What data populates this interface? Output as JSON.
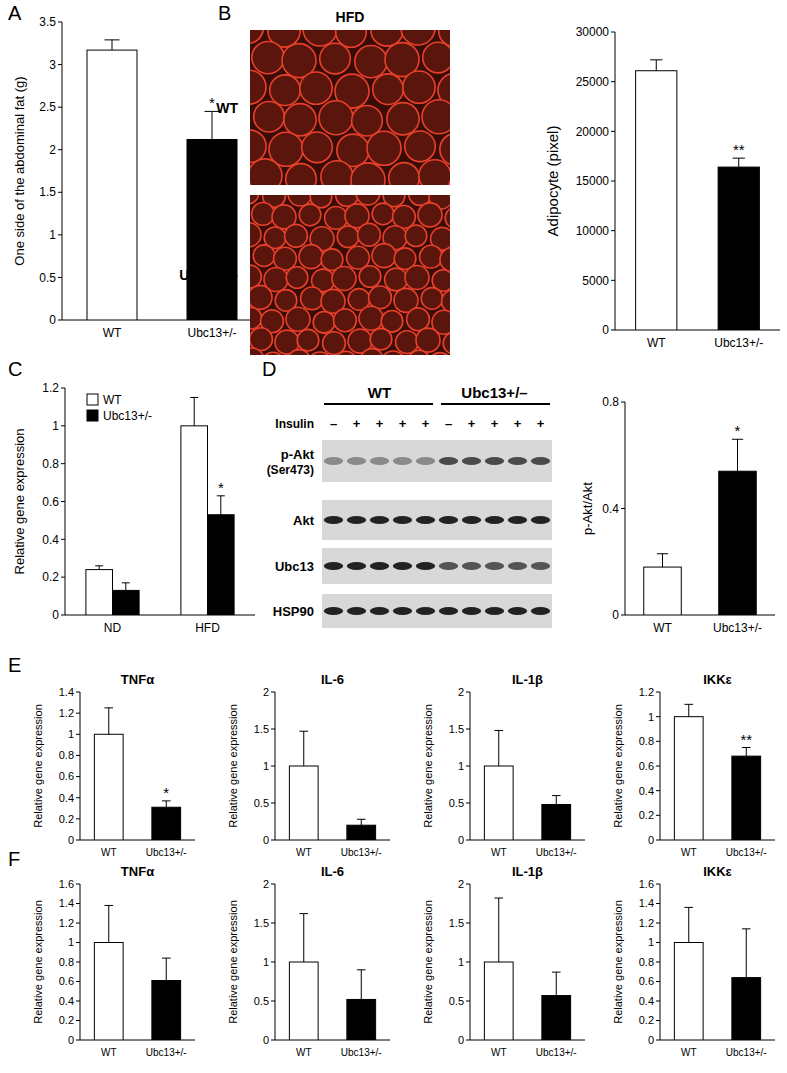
{
  "chart_data": [
    {
      "type": "bar",
      "y_label": "One side of the abdominal fat (g)",
      "categories": [
        "WT",
        "Ubc13+/-"
      ],
      "values": [
        3.17,
        2.12
      ],
      "errors": [
        0.12,
        0.33
      ],
      "significance": [
        null,
        "*"
      ],
      "colors": [
        "#ffffff",
        "#000000"
      ],
      "ylim": [
        0,
        3.5
      ],
      "yticks": [
        0,
        0.5,
        1,
        1.5,
        2,
        2.5,
        3,
        3.5
      ]
    },
    {
      "type": "bar",
      "y_label": "Adipocyte (pixel)",
      "categories": [
        "WT",
        "Ubc13+/-"
      ],
      "values": [
        26100,
        16400
      ],
      "errors": [
        1100,
        900
      ],
      "significance": [
        null,
        "**"
      ],
      "colors": [
        "#ffffff",
        "#000000"
      ],
      "ylim": [
        0,
        30000
      ],
      "yticks": [
        0,
        5000,
        10000,
        15000,
        20000,
        25000,
        30000
      ]
    },
    {
      "type": "bar",
      "y_label": "Relative gene expression",
      "categories": [
        "ND",
        "HFD"
      ],
      "series": [
        {
          "name": "WT",
          "color": "#ffffff",
          "values": [
            0.24,
            1.0
          ],
          "errors": [
            0.02,
            0.15
          ],
          "significance": [
            null,
            null
          ]
        },
        {
          "name": "Ubc13+/-",
          "color": "#000000",
          "values": [
            0.13,
            0.53
          ],
          "errors": [
            0.04,
            0.1
          ],
          "significance": [
            null,
            "*"
          ]
        }
      ],
      "legend": "top-left",
      "ylim": [
        0,
        1.2
      ],
      "yticks": [
        0,
        0.2,
        0.4,
        0.6,
        0.8,
        1,
        1.2
      ]
    },
    {
      "type": "bar",
      "y_label": "p-Akt/Akt",
      "categories": [
        "WT",
        "Ubc13+/-"
      ],
      "values": [
        0.18,
        0.54
      ],
      "errors": [
        0.05,
        0.12
      ],
      "significance": [
        null,
        "*"
      ],
      "colors": [
        "#ffffff",
        "#000000"
      ],
      "ylim": [
        0,
        0.8
      ],
      "yticks": [
        0,
        0.4,
        0.8
      ]
    },
    {
      "type": "bar",
      "title": "TNFα",
      "y_label": "Relative gene expression",
      "categories": [
        "WT",
        "Ubc13+/-"
      ],
      "values": [
        1,
        0.31
      ],
      "errors": [
        0.25,
        0.06
      ],
      "significance": [
        null,
        "*"
      ],
      "colors": [
        "#ffffff",
        "#000000"
      ],
      "ylim": [
        0,
        1.4
      ],
      "yticks": [
        0,
        0.2,
        0.4,
        0.6,
        0.8,
        1,
        1.2,
        1.4
      ]
    },
    {
      "type": "bar",
      "title": "IL-6",
      "y_label": "Relative gene expression",
      "categories": [
        "WT",
        "Ubc13+/-"
      ],
      "values": [
        1,
        0.2
      ],
      "errors": [
        0.47,
        0.08
      ],
      "significance": [
        null,
        null
      ],
      "colors": [
        "#ffffff",
        "#000000"
      ],
      "ylim": [
        0,
        2
      ],
      "yticks": [
        0,
        0.5,
        1,
        1.5,
        2
      ]
    },
    {
      "type": "bar",
      "title": "IL-1β",
      "y_label": "Relative gene expression",
      "categories": [
        "WT",
        "Ubc13+/-"
      ],
      "values": [
        1,
        0.48
      ],
      "errors": [
        0.48,
        0.12
      ],
      "significance": [
        null,
        null
      ],
      "colors": [
        "#ffffff",
        "#000000"
      ],
      "ylim": [
        0,
        2
      ],
      "yticks": [
        0,
        0.5,
        1,
        1.5,
        2
      ]
    },
    {
      "type": "bar",
      "title": "IKKε",
      "y_label": "Relative gene expression",
      "categories": [
        "WT",
        "Ubc13+/-"
      ],
      "values": [
        1,
        0.68
      ],
      "errors": [
        0.1,
        0.07
      ],
      "significance": [
        null,
        "**"
      ],
      "colors": [
        "#ffffff",
        "#000000"
      ],
      "ylim": [
        0,
        1.2
      ],
      "yticks": [
        0,
        0.2,
        0.4,
        0.6,
        0.8,
        1,
        1.2
      ]
    },
    {
      "type": "bar",
      "title": "TNFα",
      "y_label": "Relative gene expression",
      "categories": [
        "WT",
        "Ubc13+/-"
      ],
      "values": [
        1,
        0.61
      ],
      "errors": [
        0.38,
        0.23
      ],
      "significance": [
        null,
        null
      ],
      "colors": [
        "#ffffff",
        "#000000"
      ],
      "ylim": [
        0,
        1.6
      ],
      "yticks": [
        0,
        0.2,
        0.4,
        0.6,
        0.8,
        1,
        1.2,
        1.4,
        1.6
      ]
    },
    {
      "type": "bar",
      "title": "IL-6",
      "y_label": "Relative gene expression",
      "categories": [
        "WT",
        "Ubc13+/-"
      ],
      "values": [
        1,
        0.52
      ],
      "errors": [
        0.62,
        0.38
      ],
      "significance": [
        null,
        null
      ],
      "colors": [
        "#ffffff",
        "#000000"
      ],
      "ylim": [
        0,
        2
      ],
      "yticks": [
        0,
        0.5,
        1,
        1.5,
        2
      ]
    },
    {
      "type": "bar",
      "title": "IL-1β",
      "y_label": "Relative gene expression",
      "categories": [
        "WT",
        "Ubc13+/-"
      ],
      "values": [
        1,
        0.57
      ],
      "errors": [
        0.82,
        0.3
      ],
      "significance": [
        null,
        null
      ],
      "colors": [
        "#ffffff",
        "#000000"
      ],
      "ylim": [
        0,
        2
      ],
      "yticks": [
        0,
        0.5,
        1,
        1.5,
        2
      ]
    },
    {
      "type": "bar",
      "title": "IKKε",
      "y_label": "Relative gene expression",
      "categories": [
        "WT",
        "Ubc13+/-"
      ],
      "values": [
        1,
        0.64
      ],
      "errors": [
        0.36,
        0.5
      ],
      "significance": [
        null,
        null
      ],
      "colors": [
        "#ffffff",
        "#000000"
      ],
      "ylim": [
        0,
        1.6
      ],
      "yticks": [
        0,
        0.2,
        0.4,
        0.6,
        0.8,
        1,
        1.2,
        1.4,
        1.6
      ]
    }
  ],
  "panel_labels": [
    "A",
    "B",
    "C",
    "D",
    "E",
    "F"
  ],
  "micrographs": {
    "title": "HFD",
    "labels": [
      "WT",
      "Ubc13+/-"
    ]
  },
  "blot": {
    "group_labels": [
      "WT",
      "Ubc13+/–"
    ],
    "treatment_label": "Insulin",
    "lanes": [
      "–",
      "+",
      "+",
      "+",
      "+",
      "–",
      "+",
      "+",
      "+",
      "+"
    ],
    "rows": [
      "p-Akt",
      "Akt",
      "Ubc13",
      "HSP90"
    ],
    "row_note": "(Ser473)"
  }
}
